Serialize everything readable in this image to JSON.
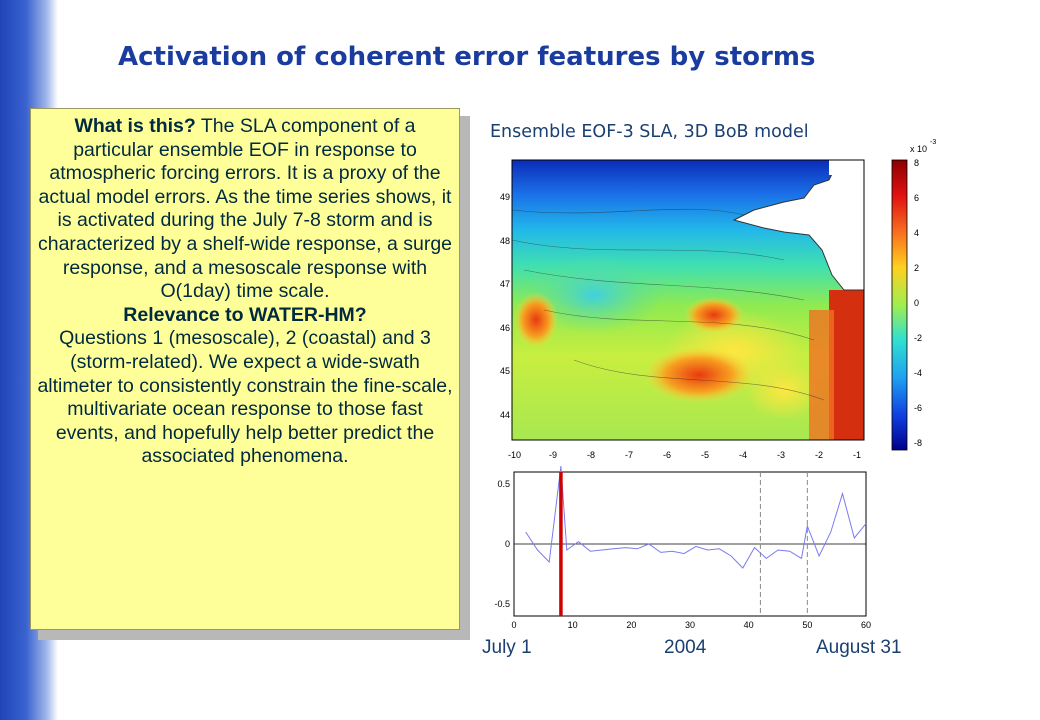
{
  "slide": {
    "title": "Activation of coherent error features by storms"
  },
  "textbox": {
    "q1": "What is this?",
    "p1": "The SLA component of a particular ensemble EOF in response to atmospheric forcing errors.  It is a proxy of the actual model errors. As the time series shows, it is activated during the July 7-8 storm and is characterized by a shelf-wide response, a surge response, and a mesoscale response with O(1day) time scale.",
    "q2": "Relevance to WATER-HM?",
    "p2": "Questions 1 (mesoscale), 2 (coastal) and 3 (storm-related).  We expect a wide-swath altimeter to consistently constrain the fine-scale, multivariate ocean response to those fast events, and hopefully help better predict the associated phenomena."
  },
  "figure": {
    "map_title": "Ensemble EOF-3 SLA, 3D BoB model",
    "lat_ticks": [
      "49",
      "48",
      "47",
      "46",
      "45",
      "44"
    ],
    "lon_ticks": [
      "-10",
      "-9",
      "-8",
      "-7",
      "-6",
      "-5",
      "-4",
      "-3",
      "-2",
      "-1"
    ],
    "colorbar_exponent": "x 10",
    "colorbar_exponent_power": "-3",
    "colorbar_ticks": [
      "8",
      "6",
      "4",
      "2",
      "0",
      "-2",
      "-4",
      "-6",
      "-8"
    ],
    "ts_y_ticks": [
      "0.5",
      "0",
      "-0.5"
    ],
    "ts_x_ticks": [
      "0",
      "10",
      "20",
      "30",
      "40",
      "50",
      "60"
    ],
    "label_start": "July 1",
    "label_year": "2004",
    "label_end": "August 31"
  },
  "colors": {
    "title": "#1a3c9e",
    "textbox_bg": "#ffff99",
    "series_line": "#7b7bf0",
    "storm_marker": "#d10000"
  },
  "chart_data": {
    "type": "line",
    "title": "",
    "xlabel": "",
    "ylabel": "",
    "xlim": [
      0,
      60
    ],
    "ylim": [
      -0.6,
      0.6
    ],
    "series": [
      {
        "x": [
          2,
          4,
          6,
          8,
          9,
          11,
          13,
          15,
          17,
          19,
          21,
          23,
          25,
          27,
          29,
          31,
          33,
          35,
          37,
          39,
          41,
          43,
          45,
          47,
          49,
          50,
          52,
          54,
          56,
          58,
          60
        ],
        "values": [
          0.1,
          -0.05,
          -0.15,
          0.65,
          -0.05,
          0.02,
          -0.06,
          -0.05,
          -0.04,
          -0.03,
          -0.04,
          0.0,
          -0.07,
          -0.06,
          -0.08,
          -0.02,
          -0.05,
          -0.04,
          -0.1,
          -0.2,
          -0.03,
          -0.12,
          -0.05,
          -0.06,
          -0.12,
          0.15,
          -0.1,
          0.1,
          0.42,
          0.05,
          0.17
        ]
      }
    ],
    "storm_marker_x": 8,
    "dashed_lines_x": [
      42,
      50
    ],
    "zero_line": true
  }
}
